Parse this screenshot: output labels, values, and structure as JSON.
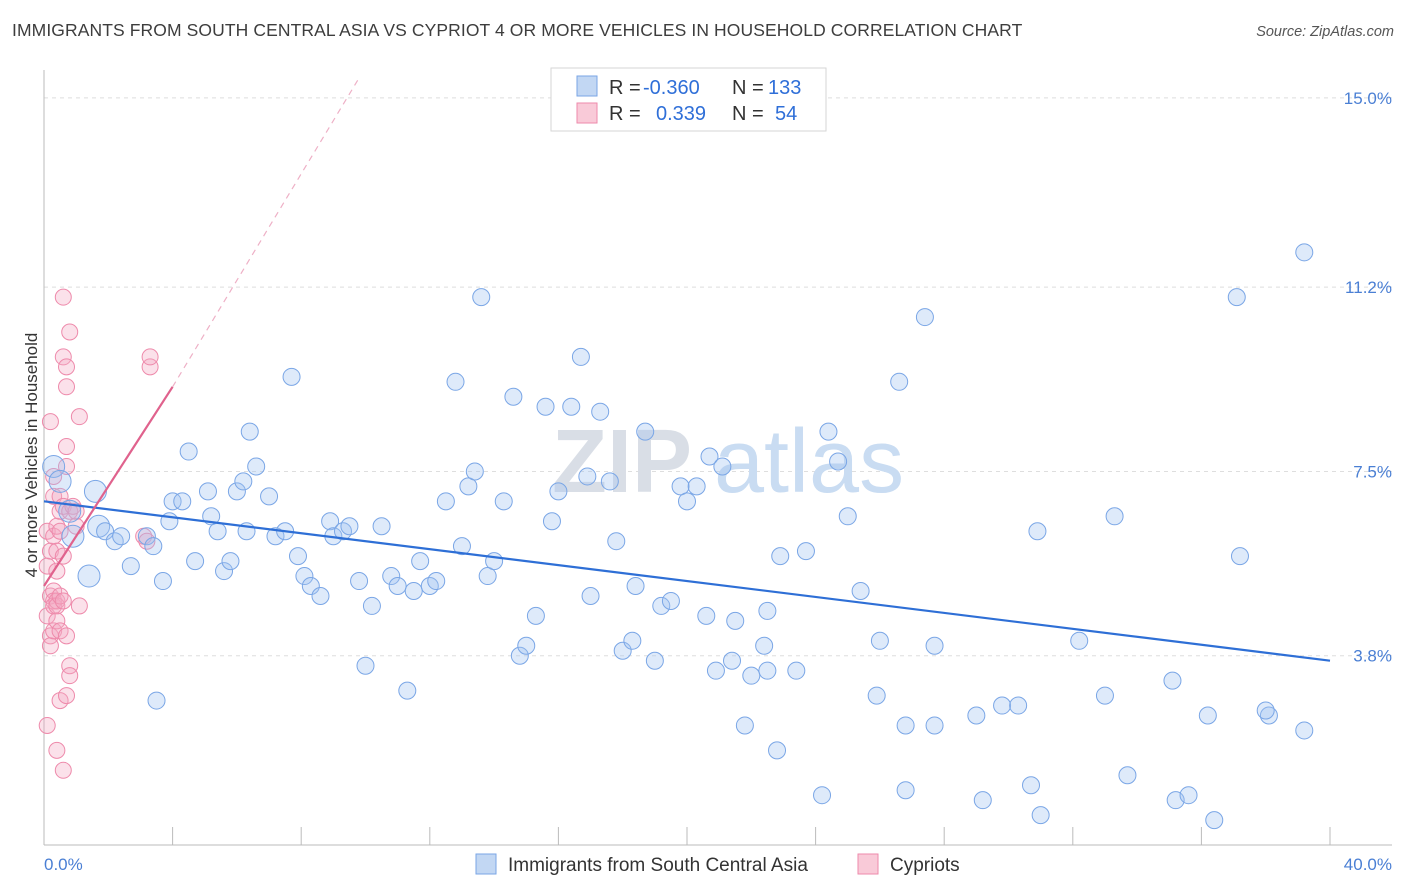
{
  "title": "IMMIGRANTS FROM SOUTH CENTRAL ASIA VS CYPRIOT 4 OR MORE VEHICLES IN HOUSEHOLD CORRELATION CHART",
  "source": "Source: ZipAtlas.com",
  "watermark": {
    "zip": "ZIP",
    "atlas": "atlas"
  },
  "legend_top": [
    {
      "r_label": "R =",
      "r_value": "-0.360",
      "n_label": "N =",
      "n_value": "133"
    },
    {
      "r_label": "R =",
      "r_value": "0.339",
      "n_label": "N =",
      "n_value": "54"
    }
  ],
  "legend_bottom": [
    "Immigrants from South Central Asia",
    "Cypriots"
  ],
  "colors": {
    "blue": "#7aa6e6",
    "blue_line": "#2e6fd6",
    "pink": "#ee8aab",
    "pink_line": "#e0628d"
  },
  "chart_data": {
    "type": "scatter",
    "title": "IMMIGRANTS FROM SOUTH CENTRAL ASIA VS CYPRIOT 4 OR MORE VEHICLES IN HOUSEHOLD CORRELATION CHART",
    "xlabel": "",
    "ylabel": "4 or more Vehicles in Household",
    "xlim": [
      0,
      40
    ],
    "ylim": [
      0,
      15.4
    ],
    "x_tick_labels": [
      "0.0%",
      "40.0%"
    ],
    "y_ticks": [
      3.8,
      7.5,
      11.2,
      15.0
    ],
    "y_tick_labels": [
      "3.8%",
      "7.5%",
      "11.2%",
      "15.0%"
    ],
    "grid": true,
    "legend_placement": "top-center",
    "series": [
      {
        "name": "Immigrants from South Central Asia",
        "R": -0.36,
        "N": 133,
        "trend": {
          "x": [
            0,
            40
          ],
          "y": [
            6.9,
            3.7
          ]
        },
        "points": [
          [
            0.3,
            7.6
          ],
          [
            0.5,
            7.3
          ],
          [
            0.8,
            6.7
          ],
          [
            0.9,
            6.2
          ],
          [
            1.4,
            5.4
          ],
          [
            1.6,
            7.1
          ],
          [
            1.7,
            6.4
          ],
          [
            1.9,
            6.3
          ],
          [
            2.2,
            6.1
          ],
          [
            2.4,
            6.2
          ],
          [
            2.7,
            5.6
          ],
          [
            3.2,
            6.2
          ],
          [
            3.4,
            6.0
          ],
          [
            3.5,
            2.9
          ],
          [
            3.7,
            5.3
          ],
          [
            3.9,
            6.5
          ],
          [
            4.0,
            6.9
          ],
          [
            4.3,
            6.9
          ],
          [
            4.5,
            7.9
          ],
          [
            4.7,
            5.7
          ],
          [
            5.1,
            7.1
          ],
          [
            5.2,
            6.6
          ],
          [
            5.4,
            6.3
          ],
          [
            5.6,
            5.5
          ],
          [
            5.8,
            5.7
          ],
          [
            6.0,
            7.1
          ],
          [
            6.2,
            7.3
          ],
          [
            6.4,
            8.3
          ],
          [
            6.3,
            6.3
          ],
          [
            6.6,
            7.6
          ],
          [
            7.0,
            7.0
          ],
          [
            7.2,
            6.2
          ],
          [
            7.5,
            6.3
          ],
          [
            7.7,
            9.4
          ],
          [
            7.9,
            5.8
          ],
          [
            8.1,
            5.4
          ],
          [
            8.3,
            5.2
          ],
          [
            8.6,
            5.0
          ],
          [
            8.9,
            6.5
          ],
          [
            9.0,
            6.2
          ],
          [
            9.3,
            6.3
          ],
          [
            9.5,
            6.4
          ],
          [
            9.8,
            5.3
          ],
          [
            10.0,
            3.6
          ],
          [
            10.2,
            4.8
          ],
          [
            10.5,
            6.4
          ],
          [
            10.8,
            5.4
          ],
          [
            11.0,
            5.2
          ],
          [
            11.3,
            3.1
          ],
          [
            11.5,
            5.1
          ],
          [
            11.7,
            5.7
          ],
          [
            12.0,
            5.2
          ],
          [
            12.2,
            5.3
          ],
          [
            12.5,
            6.9
          ],
          [
            12.8,
            9.3
          ],
          [
            13.0,
            6.0
          ],
          [
            13.2,
            7.2
          ],
          [
            13.4,
            7.5
          ],
          [
            13.6,
            11.0
          ],
          [
            13.8,
            5.4
          ],
          [
            14.0,
            5.7
          ],
          [
            14.3,
            6.9
          ],
          [
            14.6,
            9.0
          ],
          [
            14.8,
            3.8
          ],
          [
            15.0,
            4.0
          ],
          [
            15.3,
            4.6
          ],
          [
            15.6,
            8.8
          ],
          [
            15.8,
            6.5
          ],
          [
            16.0,
            7.1
          ],
          [
            16.4,
            8.8
          ],
          [
            16.7,
            9.8
          ],
          [
            16.9,
            7.4
          ],
          [
            17.0,
            5.0
          ],
          [
            17.3,
            8.7
          ],
          [
            17.6,
            7.3
          ],
          [
            17.8,
            6.1
          ],
          [
            18.0,
            3.9
          ],
          [
            18.3,
            4.1
          ],
          [
            18.4,
            5.2
          ],
          [
            18.7,
            8.3
          ],
          [
            19.0,
            3.7
          ],
          [
            19.2,
            4.8
          ],
          [
            19.5,
            4.9
          ],
          [
            19.8,
            7.2
          ],
          [
            20.0,
            6.9
          ],
          [
            20.3,
            7.2
          ],
          [
            20.6,
            4.6
          ],
          [
            20.7,
            7.8
          ],
          [
            20.9,
            3.5
          ],
          [
            21.1,
            7.6
          ],
          [
            21.4,
            3.7
          ],
          [
            21.5,
            4.5
          ],
          [
            21.8,
            2.4
          ],
          [
            22.0,
            3.4
          ],
          [
            22.4,
            4.0
          ],
          [
            22.5,
            3.5
          ],
          [
            22.5,
            4.7
          ],
          [
            22.8,
            1.9
          ],
          [
            22.9,
            5.8
          ],
          [
            23.4,
            3.5
          ],
          [
            23.7,
            5.9
          ],
          [
            24.2,
            1.0
          ],
          [
            24.4,
            8.3
          ],
          [
            24.7,
            7.7
          ],
          [
            25.0,
            6.6
          ],
          [
            25.4,
            5.1
          ],
          [
            25.9,
            3.0
          ],
          [
            26.0,
            4.1
          ],
          [
            26.8,
            2.4
          ],
          [
            26.8,
            1.1
          ],
          [
            26.6,
            9.3
          ],
          [
            27.4,
            10.6
          ],
          [
            27.7,
            4.0
          ],
          [
            27.7,
            2.4
          ],
          [
            29.0,
            2.6
          ],
          [
            29.2,
            0.9
          ],
          [
            29.8,
            2.8
          ],
          [
            30.3,
            2.8
          ],
          [
            30.7,
            1.2
          ],
          [
            30.9,
            6.3
          ],
          [
            31.0,
            0.6
          ],
          [
            32.2,
            4.1
          ],
          [
            33.0,
            3.0
          ],
          [
            33.3,
            6.6
          ],
          [
            33.7,
            1.4
          ],
          [
            35.1,
            3.3
          ],
          [
            35.2,
            0.9
          ],
          [
            35.6,
            1.0
          ],
          [
            36.2,
            2.6
          ],
          [
            36.4,
            0.5
          ],
          [
            37.1,
            11.0
          ],
          [
            37.2,
            5.8
          ],
          [
            38.1,
            2.6
          ],
          [
            38.0,
            2.7
          ],
          [
            39.2,
            2.3
          ],
          [
            39.2,
            11.9
          ]
        ]
      },
      {
        "name": "Cypriots",
        "R": 0.339,
        "N": 54,
        "trend": {
          "x": [
            0,
            4.0
          ],
          "y": [
            5.2,
            9.2
          ]
        },
        "trend_dashed": {
          "x": [
            4.0,
            9.8
          ],
          "y": [
            9.2,
            15.4
          ]
        },
        "points": [
          [
            0.1,
            6.3
          ],
          [
            0.1,
            5.6
          ],
          [
            0.1,
            4.6
          ],
          [
            0.1,
            2.4
          ],
          [
            0.2,
            8.5
          ],
          [
            0.2,
            5.9
          ],
          [
            0.2,
            5.0
          ],
          [
            0.2,
            4.2
          ],
          [
            0.2,
            4.0
          ],
          [
            0.3,
            7.4
          ],
          [
            0.3,
            7.0
          ],
          [
            0.3,
            6.2
          ],
          [
            0.3,
            5.1
          ],
          [
            0.3,
            4.9
          ],
          [
            0.3,
            4.8
          ],
          [
            0.3,
            4.3
          ],
          [
            0.4,
            6.4
          ],
          [
            0.4,
            5.9
          ],
          [
            0.4,
            5.5
          ],
          [
            0.4,
            4.9
          ],
          [
            0.4,
            4.8
          ],
          [
            0.4,
            4.5
          ],
          [
            0.4,
            1.9
          ],
          [
            0.5,
            7.0
          ],
          [
            0.5,
            6.3
          ],
          [
            0.5,
            6.7
          ],
          [
            0.5,
            5.0
          ],
          [
            0.5,
            4.3
          ],
          [
            0.5,
            2.9
          ],
          [
            0.6,
            11.0
          ],
          [
            0.6,
            9.8
          ],
          [
            0.6,
            6.8
          ],
          [
            0.6,
            5.8
          ],
          [
            0.6,
            4.9
          ],
          [
            0.6,
            1.5
          ],
          [
            0.7,
            9.6
          ],
          [
            0.7,
            9.2
          ],
          [
            0.7,
            8.0
          ],
          [
            0.7,
            7.6
          ],
          [
            0.7,
            4.2
          ],
          [
            0.7,
            3.0
          ],
          [
            0.8,
            10.3
          ],
          [
            0.8,
            6.7
          ],
          [
            0.8,
            3.6
          ],
          [
            0.8,
            3.4
          ],
          [
            0.9,
            6.8
          ],
          [
            1.0,
            6.4
          ],
          [
            1.0,
            6.7
          ],
          [
            1.1,
            8.6
          ],
          [
            1.1,
            4.8
          ],
          [
            3.1,
            6.2
          ],
          [
            3.2,
            6.1
          ],
          [
            3.3,
            9.6
          ],
          [
            3.3,
            9.8
          ]
        ]
      }
    ]
  }
}
